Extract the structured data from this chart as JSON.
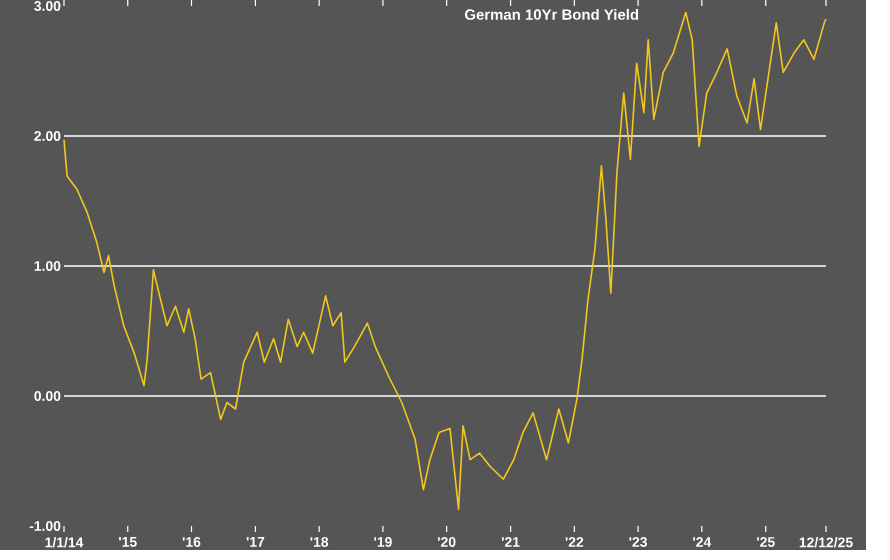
{
  "chart_data": {
    "type": "line",
    "title": "German 10Yr Bond Yield",
    "x": [
      "2014-01-01",
      "2014-01-19",
      "2014-03-16",
      "2014-05-14",
      "2014-07-08",
      "2014-08-18",
      "2014-09-13",
      "2014-10-15",
      "2014-12-09",
      "2015-02-07",
      "2015-04-04",
      "2015-04-22",
      "2015-05-28",
      "2015-07-08",
      "2015-08-14",
      "2015-10-01",
      "2015-11-18",
      "2015-12-16",
      "2016-01-22",
      "2016-02-25",
      "2016-04-19",
      "2016-06-16",
      "2016-07-22",
      "2016-09-09",
      "2016-10-26",
      "2016-12-05",
      "2017-01-11",
      "2017-02-21",
      "2017-04-15",
      "2017-05-25",
      "2017-07-08",
      "2017-08-28",
      "2017-10-04",
      "2017-11-25",
      "2018-02-07",
      "2018-03-20",
      "2018-05-07",
      "2018-05-28",
      "2018-07-22",
      "2018-10-04",
      "2018-11-18",
      "2019-02-03",
      "2019-04-19",
      "2019-07-04",
      "2019-08-21",
      "2019-09-27",
      "2019-11-18",
      "2020-01-20",
      "2020-03-09",
      "2020-04-04",
      "2020-05-14",
      "2020-07-08",
      "2020-09-05",
      "2020-11-21",
      "2021-01-19",
      "2021-03-13",
      "2021-05-10",
      "2021-07-26",
      "2021-10-04",
      "2021-11-28",
      "2022-01-15",
      "2022-02-14",
      "2022-03-20",
      "2022-04-29",
      "2022-06-05",
      "2022-07-01",
      "2022-07-29",
      "2022-09-02",
      "2022-10-11",
      "2022-11-18",
      "2022-12-24",
      "2023-02-03",
      "2023-02-28",
      "2023-04-01",
      "2023-05-25",
      "2023-07-22",
      "2023-10-01",
      "2023-11-07",
      "2023-12-16",
      "2024-01-29",
      "2024-03-27",
      "2024-05-25",
      "2024-07-19",
      "2024-09-16",
      "2024-10-26",
      "2024-12-02",
      "2025-01-19",
      "2025-03-02",
      "2025-04-11",
      "2025-06-13",
      "2025-08-07",
      "2025-10-04",
      "2025-12-02",
      "2025-12-12"
    ],
    "series": [
      {
        "color": "#f2c81e",
        "values": [
          1.97,
          1.69,
          1.59,
          1.41,
          1.18,
          0.95,
          1.08,
          0.85,
          0.54,
          0.33,
          0.08,
          0.28,
          0.97,
          0.74,
          0.54,
          0.69,
          0.49,
          0.67,
          0.44,
          0.13,
          0.18,
          -0.18,
          -0.05,
          -0.1,
          0.26,
          0.38,
          0.49,
          0.26,
          0.44,
          0.26,
          0.59,
          0.38,
          0.49,
          0.33,
          0.77,
          0.54,
          0.64,
          0.26,
          0.38,
          0.56,
          0.38,
          0.15,
          -0.05,
          -0.33,
          -0.72,
          -0.49,
          -0.28,
          -0.25,
          -0.87,
          -0.23,
          -0.49,
          -0.44,
          -0.54,
          -0.64,
          -0.49,
          -0.28,
          -0.13,
          -0.49,
          -0.1,
          -0.36,
          -0.03,
          0.28,
          0.74,
          1.13,
          1.77,
          1.36,
          0.79,
          1.72,
          2.33,
          1.82,
          2.56,
          2.18,
          2.74,
          2.13,
          2.49,
          2.64,
          2.95,
          2.74,
          1.92,
          2.33,
          2.49,
          2.67,
          2.31,
          2.1,
          2.44,
          2.05,
          2.49,
          2.87,
          2.49,
          2.64,
          2.74,
          2.59,
          2.87,
          2.9
        ]
      }
    ],
    "xlim": [
      "2014-01-01",
      "2025-12-12"
    ],
    "xticks": [
      {
        "value": "2014-01-01",
        "label": "1/1/14"
      },
      {
        "value": "2015-01-01",
        "label": "'15"
      },
      {
        "value": "2016-01-01",
        "label": "'16"
      },
      {
        "value": "2017-01-01",
        "label": "'17"
      },
      {
        "value": "2018-01-01",
        "label": "'18"
      },
      {
        "value": "2019-01-01",
        "label": "'19"
      },
      {
        "value": "2020-01-01",
        "label": "'20"
      },
      {
        "value": "2021-01-01",
        "label": "'21"
      },
      {
        "value": "2022-01-01",
        "label": "'22"
      },
      {
        "value": "2023-01-01",
        "label": "'23"
      },
      {
        "value": "2024-01-01",
        "label": "'24"
      },
      {
        "value": "2025-01-01",
        "label": "'25"
      },
      {
        "value": "2025-12-12",
        "label": "12/12/25"
      }
    ],
    "ylim": [
      -1,
      3
    ],
    "yticks": [
      {
        "value": -1,
        "label": "-1.00"
      },
      {
        "value": 0,
        "label": "0.00"
      },
      {
        "value": 1,
        "label": "1.00"
      },
      {
        "value": 2,
        "label": "2.00"
      },
      {
        "value": 3,
        "label": "3.00"
      }
    ],
    "grid": "y",
    "marker": "none",
    "line_style": "solid"
  }
}
